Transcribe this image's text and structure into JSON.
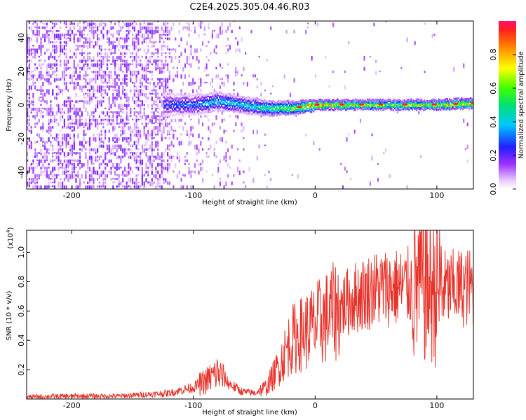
{
  "title": "C2E4.2025.305.04.46.R03",
  "colors": {
    "trace": "#e8332b",
    "background": "#ffffff",
    "axis": "#000000"
  },
  "chart_data": [
    {
      "type": "heatmap",
      "title": "C2E4.2025.305.04.46.R03",
      "xlabel": "Height of straight line (km)",
      "ylabel": "Frequency (Hz)",
      "xlim": [
        -237,
        130
      ],
      "ylim": [
        -50,
        50
      ],
      "x_ticks": [
        -200,
        -100,
        0,
        100
      ],
      "y_ticks": [
        40,
        20,
        0,
        -20,
        -40
      ],
      "colorbar": {
        "label": "Normalized spectral amplitude",
        "range": [
          0,
          1
        ],
        "ticks": [
          "0.0",
          "0.2",
          "0.4",
          "0.6",
          "0.8"
        ],
        "tick_values": [
          0,
          0.2,
          0.4,
          0.6,
          0.8
        ]
      },
      "ridge": {
        "x": [
          -120,
          -100,
          -80,
          -60,
          -40,
          -20,
          0,
          20,
          40,
          60,
          80,
          100,
          130
        ],
        "freq": [
          0,
          0,
          2,
          0,
          -2,
          -2,
          0,
          0,
          0,
          0,
          0,
          0,
          1
        ],
        "amplitude": [
          0.3,
          0.35,
          0.45,
          0.45,
          0.55,
          0.7,
          0.9,
          0.85,
          0.75,
          0.7,
          0.75,
          0.8,
          0.85
        ]
      },
      "noise_region": [
        -237,
        -40
      ]
    },
    {
      "type": "line",
      "xlabel": "Height of straight line (km)",
      "ylabel": "SNR (10 * v/v)",
      "multiplier": "(x10",
      "multiplier_exp": "4",
      "xlim": [
        -237,
        130
      ],
      "ylim": [
        0,
        1.15
      ],
      "x_ticks": [
        -200,
        -100,
        0,
        100
      ],
      "y_ticks": [
        0.2,
        0.4,
        0.6,
        0.8,
        1.0
      ],
      "y_tick_labels": [
        "0.2",
        "0.4",
        "0.6",
        "0.8",
        "1.0"
      ],
      "series": [
        {
          "x": [
            -237,
            -200,
            -160,
            -140,
            -120,
            -110,
            -100,
            -90,
            -80,
            -70,
            -60,
            -50,
            -40,
            -30,
            -20,
            -10,
            0,
            10,
            20,
            30,
            40,
            50,
            60,
            70,
            80,
            90,
            95,
            100,
            110,
            120,
            130
          ],
          "y": [
            0.015,
            0.02,
            0.02,
            0.03,
            0.04,
            0.06,
            0.08,
            0.12,
            0.18,
            0.1,
            0.05,
            0.04,
            0.08,
            0.22,
            0.4,
            0.45,
            0.5,
            0.56,
            0.62,
            0.68,
            0.72,
            0.75,
            0.76,
            0.76,
            0.77,
            0.8,
            0.75,
            0.76,
            0.75,
            0.76,
            0.76
          ]
        }
      ]
    }
  ]
}
